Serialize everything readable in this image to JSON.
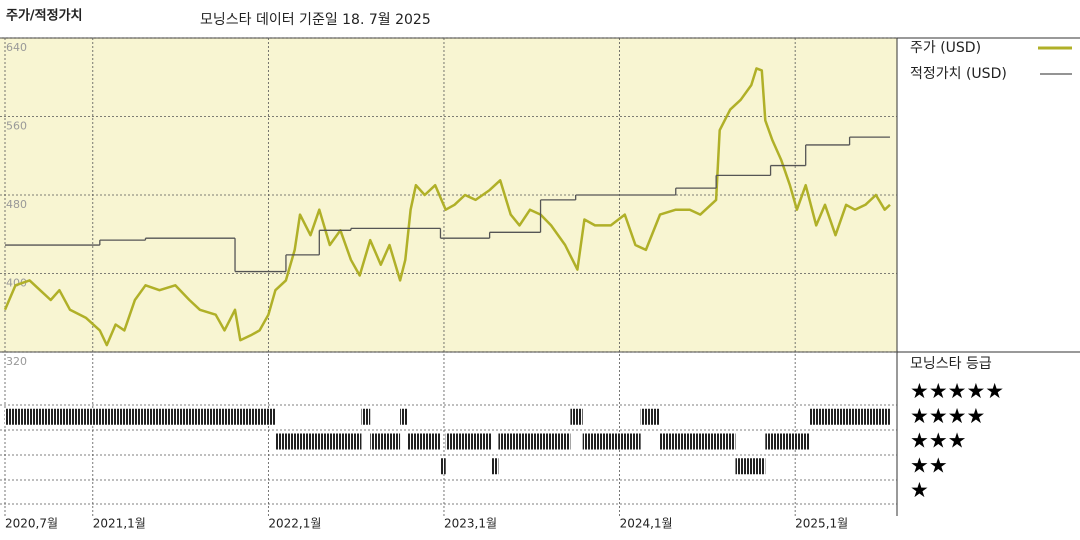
{
  "chart_data": {
    "type": "line",
    "title": "주가/적정가치",
    "subtitle": "모닝스타 데이터 기준일 18. 7월 2025",
    "xlim": [
      2020.5,
      2025.58
    ],
    "xticks": [
      {
        "value": 2020.5,
        "label": "2020,7월"
      },
      {
        "value": 2021.0,
        "label": "2021,1월"
      },
      {
        "value": 2022.0,
        "label": "2022,1월"
      },
      {
        "value": 2023.0,
        "label": "2023,1월"
      },
      {
        "value": 2024.0,
        "label": "2024,1월"
      },
      {
        "value": 2025.0,
        "label": "2025,1월"
      }
    ],
    "ylim": [
      320,
      640
    ],
    "yticks": [
      320,
      400,
      480,
      560,
      640
    ],
    "grid": true,
    "series": [
      {
        "name": "주가 (USD)",
        "color": "#b0b028",
        "x": [
          2020.5,
          2020.56,
          2020.64,
          2020.7,
          2020.76,
          2020.81,
          2020.87,
          2020.96,
          2021.04,
          2021.08,
          2021.13,
          2021.18,
          2021.24,
          2021.3,
          2021.38,
          2021.47,
          2021.55,
          2021.61,
          2021.7,
          2021.75,
          2021.81,
          2021.84,
          2021.9,
          2021.95,
          2022.0,
          2022.04,
          2022.1,
          2022.15,
          2022.18,
          2022.24,
          2022.29,
          2022.35,
          2022.41,
          2022.47,
          2022.52,
          2022.58,
          2022.64,
          2022.69,
          2022.75,
          2022.78,
          2022.81,
          2022.84,
          2022.89,
          2022.95,
          2023.01,
          2023.06,
          2023.12,
          2023.18,
          2023.26,
          2023.32,
          2023.38,
          2023.43,
          2023.49,
          2023.55,
          2023.61,
          2023.69,
          2023.76,
          2023.8,
          2023.86,
          2023.95,
          2024.03,
          2024.09,
          2024.15,
          2024.23,
          2024.32,
          2024.4,
          2024.46,
          2024.55,
          2024.57,
          2024.63,
          2024.69,
          2024.75,
          2024.78,
          2024.81,
          2024.83,
          2024.87,
          2024.92,
          2024.97,
          2025.01,
          2025.06,
          2025.12,
          2025.17,
          2025.23,
          2025.29,
          2025.34,
          2025.4,
          2025.46,
          2025.51,
          2025.54
        ],
        "values": [
          363,
          388,
          393,
          383,
          373,
          383,
          363,
          355,
          342,
          327,
          348,
          342,
          373,
          388,
          383,
          388,
          373,
          363,
          358,
          342,
          363,
          332,
          337,
          342,
          358,
          383,
          393,
          424,
          460,
          439,
          465,
          429,
          444,
          414,
          398,
          434,
          409,
          429,
          393,
          414,
          465,
          490,
          480,
          490,
          465,
          470,
          480,
          475,
          485,
          495,
          460,
          449,
          465,
          460,
          449,
          429,
          404,
          455,
          449,
          449,
          460,
          429,
          424,
          460,
          465,
          465,
          460,
          475,
          546,
          567,
          577,
          592,
          609,
          607,
          556,
          536,
          516,
          490,
          465,
          490,
          449,
          470,
          439,
          470,
          465,
          470,
          480,
          465,
          470
        ]
      },
      {
        "name": "적정가치 (USD)",
        "color": "#555555",
        "step": "post",
        "x": [
          2020.5,
          2021.04,
          2021.3,
          2021.81,
          2022.1,
          2022.29,
          2022.47,
          2022.98,
          2023.26,
          2023.55,
          2023.75,
          2024.32,
          2024.55,
          2024.86,
          2025.06,
          2025.31,
          2025.54
        ],
        "values": [
          429,
          434,
          436,
          402,
          419,
          444,
          446,
          436,
          442,
          475,
          480,
          487,
          500,
          510,
          531,
          539,
          539
        ]
      }
    ],
    "rating_title": "모닝스타 등급",
    "rating_labels": [
      {
        "value": 5,
        "label": "★★★★★"
      },
      {
        "value": 4,
        "label": "★★★★"
      },
      {
        "value": 3,
        "label": "★★★"
      },
      {
        "value": 2,
        "label": "★★"
      },
      {
        "value": 1,
        "label": "★"
      }
    ],
    "rating_periods": [
      {
        "start": 2020.5,
        "end": 2022.04,
        "stars": 4
      },
      {
        "start": 2022.04,
        "end": 2022.53,
        "stars": 3
      },
      {
        "start": 2022.53,
        "end": 2022.58,
        "stars": 4
      },
      {
        "start": 2022.58,
        "end": 2022.75,
        "stars": 3
      },
      {
        "start": 2022.75,
        "end": 2022.79,
        "stars": 4
      },
      {
        "start": 2022.79,
        "end": 2022.98,
        "stars": 3
      },
      {
        "start": 2022.98,
        "end": 2023.01,
        "stars": 2
      },
      {
        "start": 2023.01,
        "end": 2023.27,
        "stars": 3
      },
      {
        "start": 2023.27,
        "end": 2023.31,
        "stars": 2
      },
      {
        "start": 2023.31,
        "end": 2023.72,
        "stars": 3
      },
      {
        "start": 2023.72,
        "end": 2023.79,
        "stars": 4
      },
      {
        "start": 2023.79,
        "end": 2024.12,
        "stars": 3
      },
      {
        "start": 2024.12,
        "end": 2024.23,
        "stars": 4
      },
      {
        "start": 2024.23,
        "end": 2024.66,
        "stars": 3
      },
      {
        "start": 2024.66,
        "end": 2024.83,
        "stars": 2
      },
      {
        "start": 2024.83,
        "end": 2025.08,
        "stars": 3
      },
      {
        "start": 2025.08,
        "end": 2025.54,
        "stars": 4
      }
    ]
  }
}
